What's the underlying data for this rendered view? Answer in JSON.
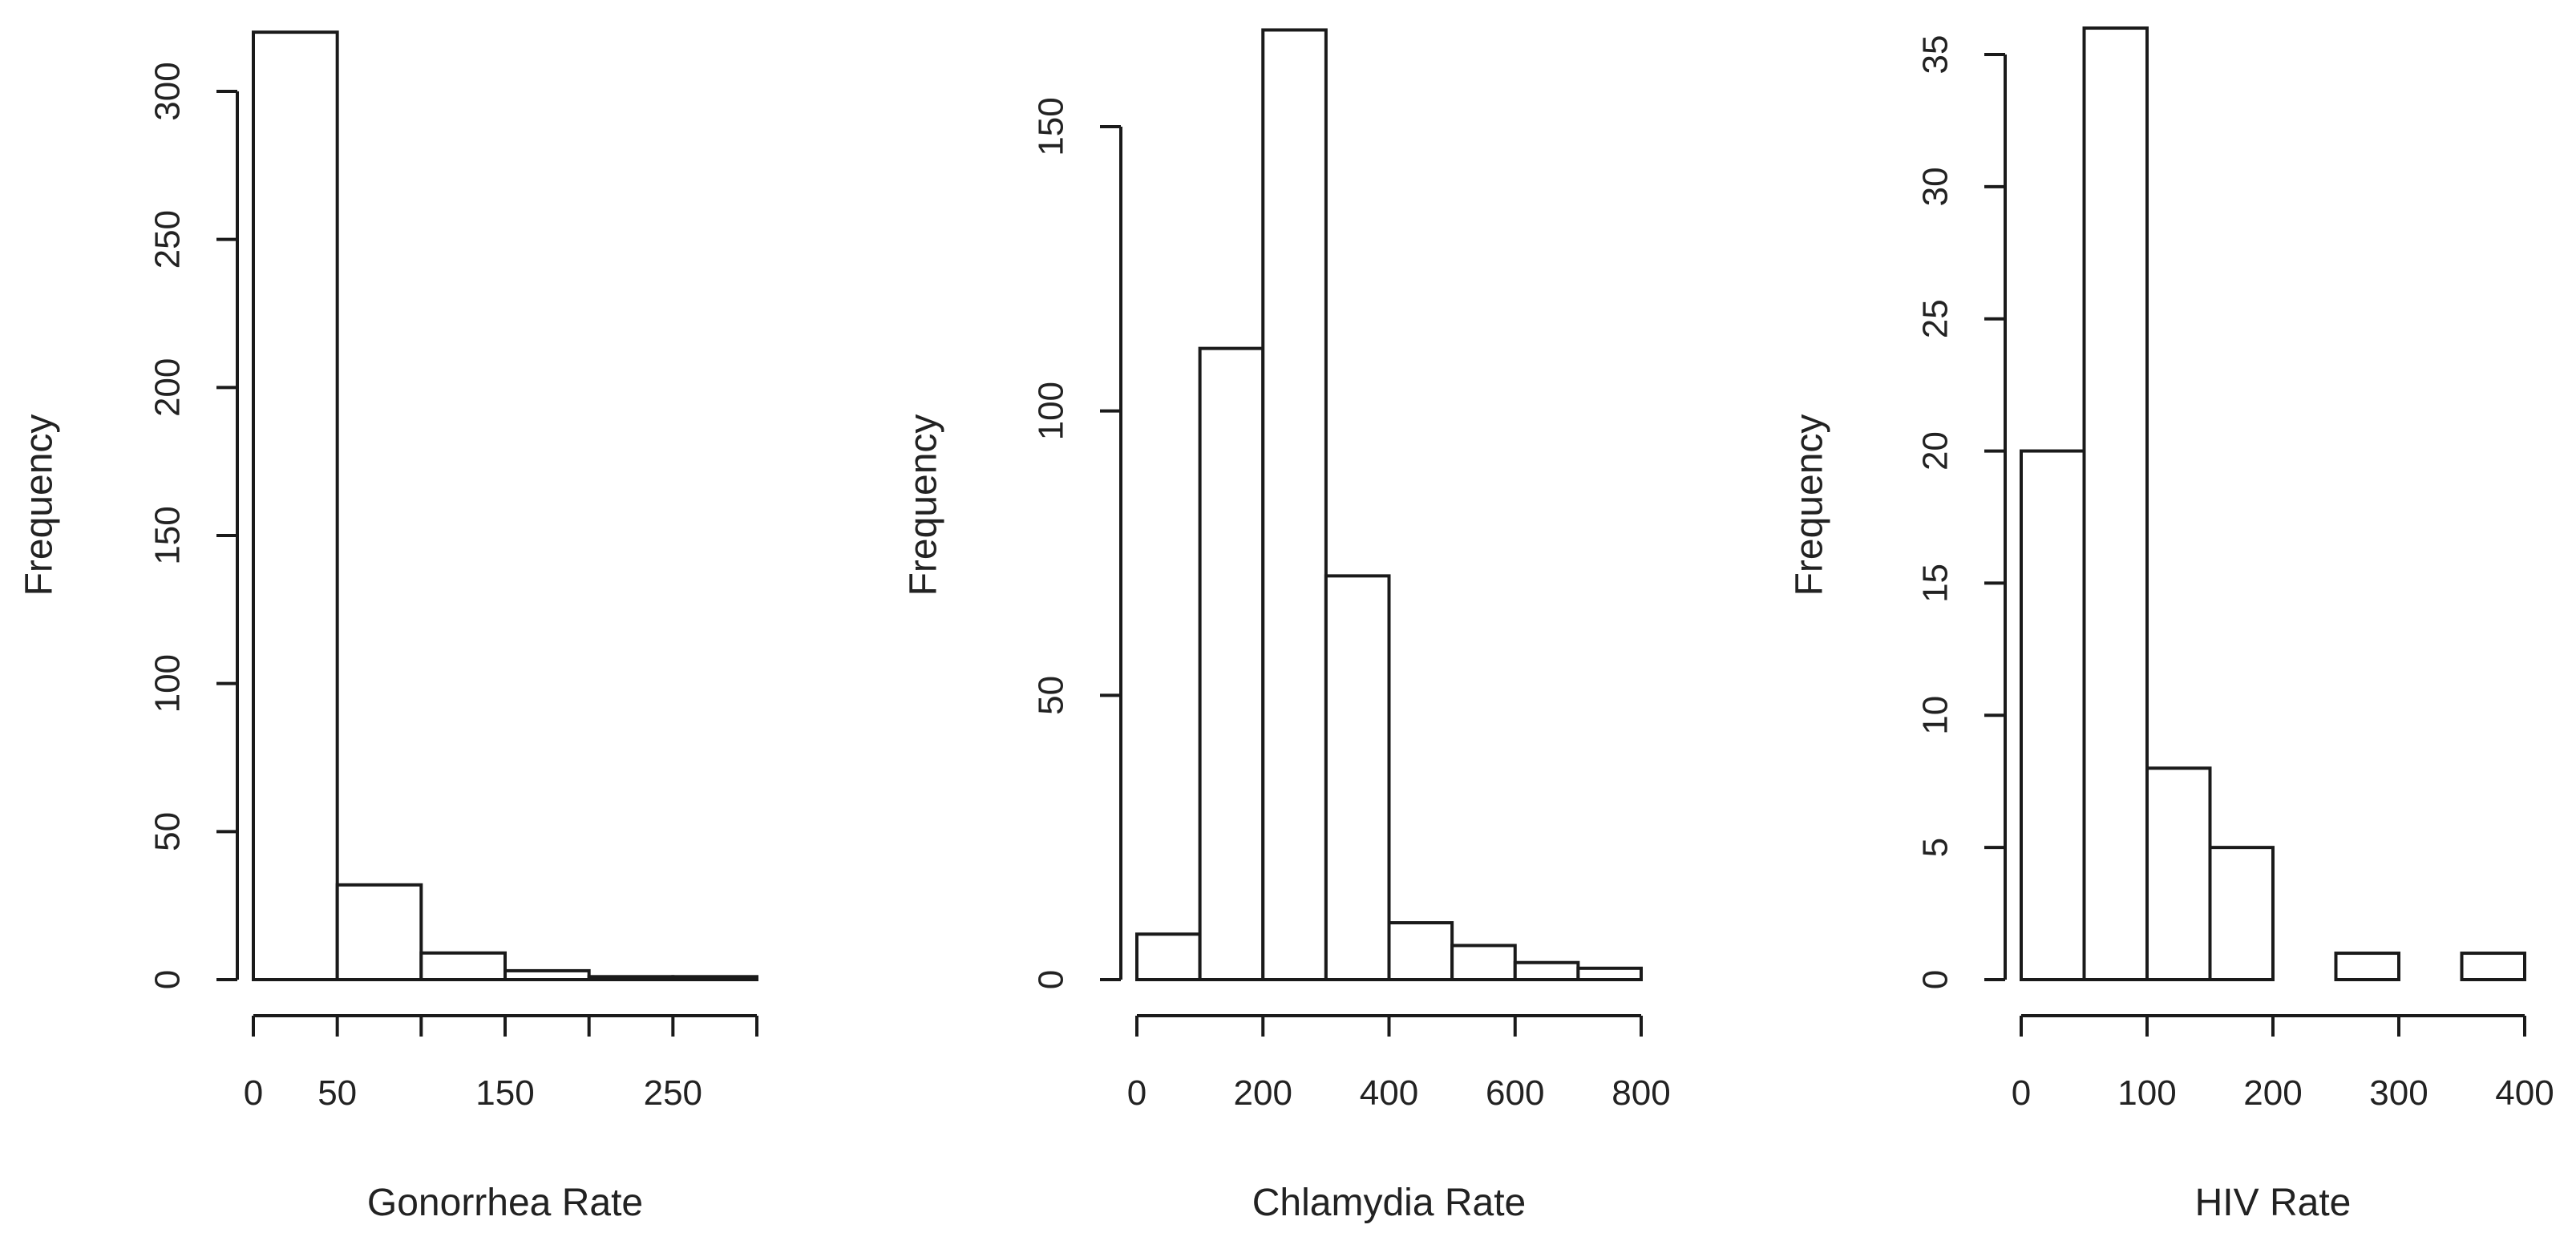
{
  "chart_data": [
    {
      "type": "bar",
      "histogram": true,
      "title": "",
      "xlabel": "Gonorrhea Rate",
      "ylabel": "Frequency",
      "bin_edges": [
        0,
        50,
        100,
        150,
        200,
        250,
        300
      ],
      "values": [
        320,
        32,
        9,
        3,
        1,
        1
      ],
      "xlim": [
        0,
        300
      ],
      "ylim": [
        0,
        300
      ],
      "x_ticks": [
        0,
        50,
        100,
        150,
        200,
        250,
        300
      ],
      "x_tick_labels": [
        "0",
        "50",
        "",
        "150",
        "",
        "250",
        ""
      ],
      "y_ticks": [
        0,
        50,
        100,
        150,
        200,
        250,
        300
      ],
      "y_tick_labels": [
        "0",
        "50",
        "100",
        "150",
        "200",
        "250",
        "300"
      ]
    },
    {
      "type": "bar",
      "histogram": true,
      "title": "",
      "xlabel": "Chlamydia Rate",
      "ylabel": "Frequency",
      "bin_edges": [
        0,
        100,
        200,
        300,
        400,
        500,
        600,
        700,
        800
      ],
      "values": [
        8,
        111,
        167,
        71,
        10,
        6,
        3,
        2
      ],
      "xlim": [
        0,
        800
      ],
      "ylim": [
        0,
        150
      ],
      "x_ticks": [
        0,
        200,
        400,
        600,
        800
      ],
      "x_tick_labels": [
        "0",
        "200",
        "400",
        "600",
        "800"
      ],
      "y_ticks": [
        0,
        50,
        100,
        150
      ],
      "y_tick_labels": [
        "0",
        "50",
        "100",
        "150"
      ]
    },
    {
      "type": "bar",
      "histogram": true,
      "title": "",
      "xlabel": "HIV Rate",
      "ylabel": "Frequency",
      "bin_edges": [
        0,
        50,
        100,
        150,
        200,
        250,
        300,
        350,
        400
      ],
      "values": [
        20,
        36,
        8,
        5,
        0,
        1,
        0,
        1
      ],
      "xlim": [
        0,
        400
      ],
      "ylim": [
        0,
        35
      ],
      "x_ticks": [
        0,
        100,
        200,
        300,
        400
      ],
      "x_tick_labels": [
        "0",
        "100",
        "200",
        "300",
        "400"
      ],
      "y_ticks": [
        0,
        5,
        10,
        15,
        20,
        25,
        30,
        35
      ],
      "y_tick_labels": [
        "0",
        "5",
        "10",
        "15",
        "20",
        "25",
        "30",
        "35"
      ]
    }
  ],
  "colors": {
    "bar_fill": "#ffffff",
    "bar_stroke": "#1a1a1a",
    "axis": "#1a1a1a",
    "text": "#222222",
    "background": "#ffffff"
  }
}
